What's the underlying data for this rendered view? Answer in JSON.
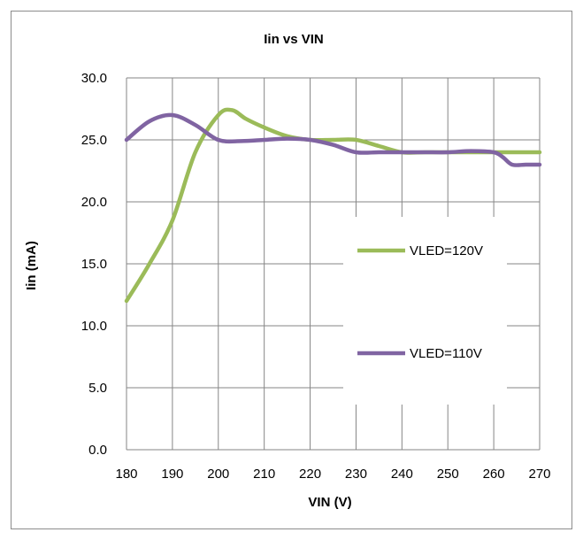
{
  "chart_data": {
    "type": "line",
    "title": "Iin vs VIN",
    "xlabel": "VIN (V)",
    "ylabel": "Iin (mA)",
    "xlim": [
      180,
      270
    ],
    "ylim": [
      0,
      30
    ],
    "x_ticks": [
      "180",
      "190",
      "200",
      "210",
      "220",
      "230",
      "240",
      "250",
      "260",
      "270"
    ],
    "y_ticks": [
      "0.0",
      "5.0",
      "10.0",
      "15.0",
      "20.0",
      "25.0",
      "30.0"
    ],
    "grid": true,
    "legend_position": "right",
    "series": [
      {
        "name": "VLED=120V",
        "color": "#9bbb59",
        "x": [
          180,
          185,
          190,
          195,
          200,
          203,
          206,
          210,
          215,
          220,
          225,
          230,
          235,
          240,
          245,
          250,
          255,
          260,
          265,
          270
        ],
        "y": [
          12.0,
          15.0,
          18.5,
          24.0,
          27.0,
          27.4,
          26.7,
          26.0,
          25.3,
          25.0,
          25.0,
          25.0,
          24.5,
          24.0,
          24.0,
          24.0,
          24.0,
          24.0,
          24.0,
          24.0
        ]
      },
      {
        "name": "VLED=110V",
        "color": "#8064a2",
        "x": [
          180,
          185,
          190,
          195,
          200,
          205,
          210,
          215,
          220,
          225,
          230,
          235,
          240,
          245,
          250,
          255,
          260,
          262,
          264,
          267,
          270
        ],
        "y": [
          25.0,
          26.5,
          27.0,
          26.2,
          25.0,
          24.9,
          25.0,
          25.1,
          25.0,
          24.6,
          24.0,
          24.0,
          24.0,
          24.0,
          24.0,
          24.1,
          24.0,
          23.6,
          23.0,
          23.0,
          23.0
        ]
      }
    ]
  }
}
